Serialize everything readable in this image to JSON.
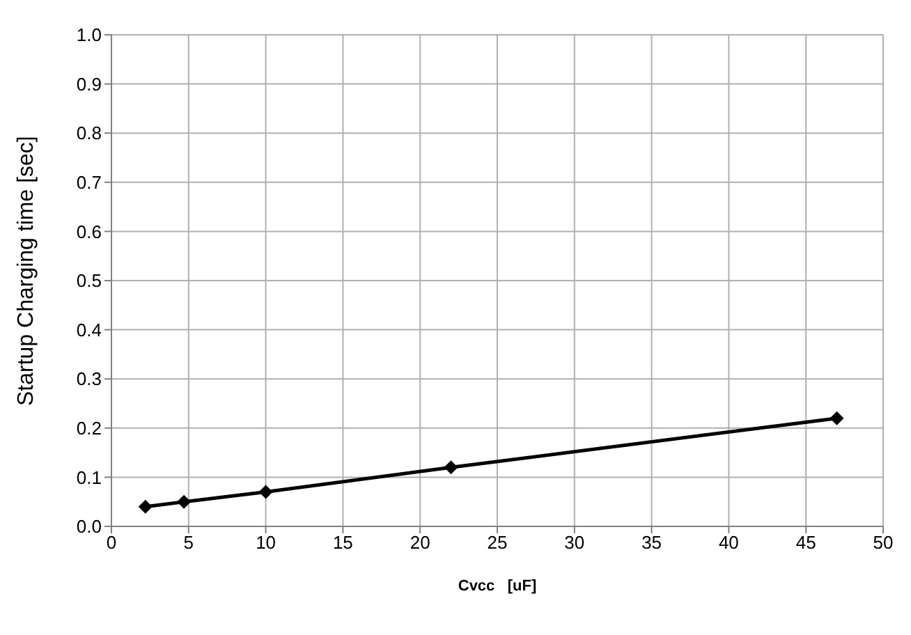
{
  "chart_data": {
    "type": "line",
    "xlabel": "Cvcc   [uF]",
    "ylabel": "Startup Charging time [sec]",
    "x": [
      2.2,
      4.7,
      10,
      22,
      47
    ],
    "series": [
      {
        "color": "#000000",
        "values": [
          0.04,
          0.05,
          0.07,
          0.12,
          0.22
        ]
      }
    ],
    "xlim": [
      0,
      50
    ],
    "xticks": [
      0,
      5,
      10,
      15,
      20,
      25,
      30,
      35,
      40,
      45,
      50
    ],
    "ylim": [
      0,
      1
    ],
    "yticks": [
      {
        "value": 0,
        "label": "0.0"
      },
      0.1,
      0.2,
      0.3,
      0.4,
      0.5,
      0.6,
      0.7,
      0.8,
      0.9,
      {
        "value": 1,
        "label": "1.0"
      }
    ],
    "grid": true,
    "marker": "diamond",
    "line_style": "solid"
  }
}
